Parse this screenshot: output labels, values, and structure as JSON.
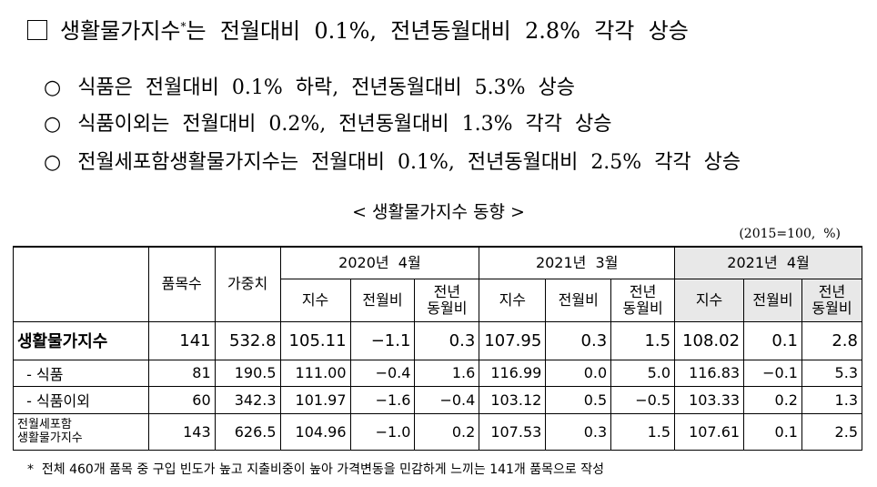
{
  "headline": {
    "lead": "생활물가지수",
    "mark": "*",
    "tail": "는  전월대비  0.1%,  전년동월대비  2.8%  각각  상승"
  },
  "bullets": [
    "식품은  전월대비  0.1%  하락,  전년동월대비  5.3%  상승",
    "식품이외는  전월대비  0.2%,  전년동월대비  1.3%  각각  상승",
    "전월세포함생활물가지수는  전월대비  0.1%,  전년동월대비  2.5%  각각  상승"
  ],
  "table": {
    "caption": "< 생활물가지수 동향 >",
    "unit": "(2015=100,  %)",
    "headers": {
      "count": "품목수",
      "weight": "가중치",
      "periods": [
        "2020년  4월",
        "2021년  3월",
        "2021년  4월"
      ],
      "sub": [
        "지수",
        "전월비",
        "전년\n동월비"
      ]
    },
    "rows": [
      {
        "label": "생활물가지수",
        "cells": [
          "141",
          "532.8",
          "105.11",
          "−1.1",
          "0.3",
          "107.95",
          "0.3",
          "1.5",
          "108.02",
          "0.1",
          "2.8"
        ]
      },
      {
        "label": "  - 식품",
        "cells": [
          "81",
          "190.5",
          "111.00",
          "−0.4",
          "1.6",
          "116.99",
          "0.0",
          "5.0",
          "116.83",
          "−0.1",
          "5.3"
        ]
      },
      {
        "label": "  - 식품이외",
        "cells": [
          "60",
          "342.3",
          "101.97",
          "−1.6",
          "−0.4",
          "103.12",
          "0.5",
          "−0.5",
          "103.33",
          "0.2",
          "1.3"
        ]
      },
      {
        "label": "전월세포함\n생활물가지수",
        "cells": [
          "143",
          "626.5",
          "104.96",
          "−1.0",
          "0.2",
          "107.53",
          "0.3",
          "1.5",
          "107.61",
          "0.1",
          "2.5"
        ]
      }
    ]
  },
  "footnote": {
    "mark": "*",
    "text": "전체 460개 품목 중 구입 빈도가 높고 지출비중이 높아 가격변동을 민감하게 느끼는 141개 품목으로 작성"
  }
}
